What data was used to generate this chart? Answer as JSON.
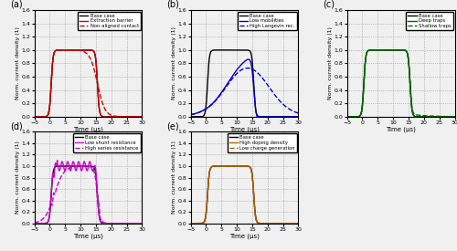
{
  "panels": [
    {
      "label": "(a)",
      "legend": [
        "Base case",
        "Extraction barrier",
        "Non-aligned contact"
      ],
      "colors": [
        "black",
        "#cc0000",
        "#cc0000"
      ],
      "linestyles": [
        "-",
        "-",
        "--"
      ],
      "linewidths": [
        1.0,
        1.0,
        1.0
      ],
      "curve_types": [
        "base",
        "base",
        "base_slow_fall"
      ]
    },
    {
      "label": "(b)",
      "legend": [
        "Base case",
        "Low mobilities",
        "High Langevin rec."
      ],
      "colors": [
        "black",
        "#0000cc",
        "#0000cc"
      ],
      "linestyles": [
        "-",
        "-",
        "--"
      ],
      "linewidths": [
        1.0,
        1.0,
        1.0
      ],
      "curve_types": [
        "base",
        "slow_rise_fast_fall",
        "slow_both"
      ]
    },
    {
      "label": "(c)",
      "legend": [
        "Base case",
        "Deep traps",
        "Shallow traps"
      ],
      "colors": [
        "black",
        "#006600",
        "#006600"
      ],
      "linestyles": [
        "-",
        "-",
        "--"
      ],
      "linewidths": [
        1.0,
        1.0,
        1.0
      ],
      "curve_types": [
        "base",
        "base",
        "shallow_traps"
      ]
    },
    {
      "label": "(d)",
      "legend": [
        "Base case",
        "Low shunt resistance",
        "High series resistance"
      ],
      "colors": [
        "black",
        "#cc00cc",
        "#cc00cc"
      ],
      "linestyles": [
        "-",
        "-",
        "--"
      ],
      "linewidths": [
        1.0,
        1.0,
        1.0
      ],
      "curve_types": [
        "base",
        "shunt_resist",
        "series_resist"
      ]
    },
    {
      "label": "(e)",
      "legend": [
        "Base case",
        "High doping density",
        "Low charge generation"
      ],
      "colors": [
        "black",
        "#b06000",
        "#b06000"
      ],
      "linestyles": [
        "-",
        "-",
        "--"
      ],
      "linewidths": [
        1.0,
        1.0,
        1.0
      ],
      "curve_types": [
        "base",
        "base",
        "base"
      ]
    }
  ],
  "xlim": [
    -5,
    30
  ],
  "ylim": [
    0,
    1.6
  ],
  "yticks": [
    0.0,
    0.2,
    0.4,
    0.6,
    0.8,
    1.0,
    1.2,
    1.4,
    1.6
  ],
  "xticks": [
    -5,
    0,
    5,
    10,
    15,
    20,
    25,
    30
  ],
  "xlabel": "Time (μs)",
  "ylabel": "Norm. current density (1)",
  "bg_color": "#f0f0f0"
}
